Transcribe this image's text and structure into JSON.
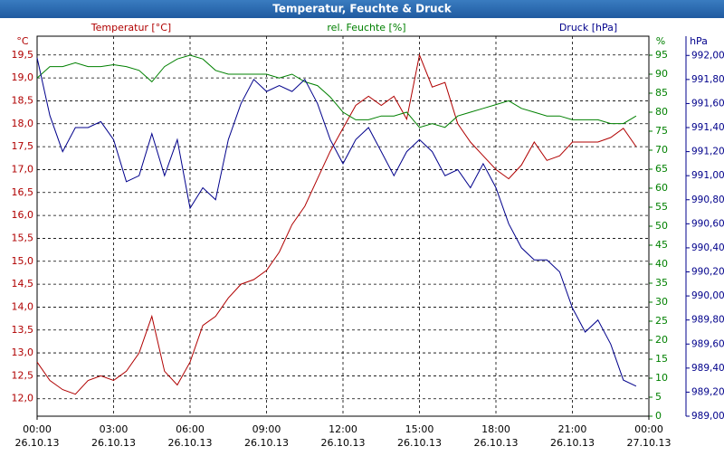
{
  "chart_data": {
    "type": "line",
    "title": "Temperatur, Feuchte & Druck",
    "y_unit": "°C",
    "y2_unit": "%",
    "y3_unit": "hPa",
    "x": [
      0,
      0.5,
      1,
      1.5,
      2,
      2.5,
      3,
      3.5,
      4,
      4.5,
      5,
      5.5,
      6,
      6.5,
      7,
      7.5,
      8,
      8.5,
      9,
      9.5,
      10,
      10.5,
      11,
      11.5,
      12,
      12.5,
      13,
      13.5,
      14,
      14.5,
      15,
      15.5,
      16,
      16.5,
      17,
      17.5,
      18,
      18.5,
      19,
      19.5,
      20,
      20.5,
      21,
      21.5,
      22,
      22.5,
      23,
      23.5
    ],
    "xlim": [
      0,
      24
    ],
    "xticks": [
      {
        "value": 0,
        "label": "00:00"
      },
      {
        "value": 3,
        "label": "03:00"
      },
      {
        "value": 6,
        "label": "06:00"
      },
      {
        "value": 9,
        "label": "09:00"
      },
      {
        "value": 12,
        "label": "12:00"
      },
      {
        "value": 15,
        "label": "15:00"
      },
      {
        "value": 18,
        "label": "18:00"
      },
      {
        "value": 21,
        "label": "21:00"
      },
      {
        "value": 24,
        "label": "00:00"
      }
    ],
    "xtick_dates": [
      "26.10.13",
      "26.10.13",
      "26.10.13",
      "26.10.13",
      "26.10.13",
      "26.10.13",
      "26.10.13",
      "26.10.13",
      "27.10.13"
    ],
    "ylim": [
      11.62,
      19.91
    ],
    "yticks": [
      {
        "value": 12,
        "label": "12,0"
      },
      {
        "value": 12.5,
        "label": "12,5"
      },
      {
        "value": 13,
        "label": "13,0"
      },
      {
        "value": 13.5,
        "label": "13,5"
      },
      {
        "value": 14,
        "label": "14,0"
      },
      {
        "value": 14.5,
        "label": "14,5"
      },
      {
        "value": 15,
        "label": "15,0"
      },
      {
        "value": 15.5,
        "label": "15,5"
      },
      {
        "value": 16,
        "label": "16,0"
      },
      {
        "value": 16.5,
        "label": "16,5"
      },
      {
        "value": 17,
        "label": "17,0"
      },
      {
        "value": 17.5,
        "label": "17,5"
      },
      {
        "value": 18,
        "label": "18,0"
      },
      {
        "value": 18.5,
        "label": "18,5"
      },
      {
        "value": 19,
        "label": "19,0"
      },
      {
        "value": 19.5,
        "label": "19,5"
      }
    ],
    "y2lim": [
      0,
      100
    ],
    "y2ticks": [
      0,
      5,
      10,
      15,
      20,
      25,
      30,
      35,
      40,
      45,
      50,
      55,
      60,
      65,
      70,
      75,
      80,
      85,
      90,
      95
    ],
    "y3lim": [
      989,
      992.16
    ],
    "y3ticks": [
      {
        "value": 989,
        "label": "989,00"
      },
      {
        "value": 989.2,
        "label": "989,20"
      },
      {
        "value": 989.4,
        "label": "989,40"
      },
      {
        "value": 989.6,
        "label": "989,60"
      },
      {
        "value": 989.8,
        "label": "989,80"
      },
      {
        "value": 990,
        "label": "990,00"
      },
      {
        "value": 990.2,
        "label": "990,20"
      },
      {
        "value": 990.4,
        "label": "990,40"
      },
      {
        "value": 990.6,
        "label": "990,60"
      },
      {
        "value": 990.8,
        "label": "990,80"
      },
      {
        "value": 991,
        "label": "991,00"
      },
      {
        "value": 991.2,
        "label": "991,20"
      },
      {
        "value": 991.4,
        "label": "991,40"
      },
      {
        "value": 991.6,
        "label": "991,60"
      },
      {
        "value": 991.8,
        "label": "991,80"
      },
      {
        "value": 992,
        "label": "992,00"
      }
    ],
    "grid": true,
    "series": [
      {
        "name": "Temperatur [°C]",
        "color": "#b00000",
        "axis": "y",
        "values": [
          12.8,
          12.4,
          12.2,
          12.1,
          12.4,
          12.5,
          12.4,
          12.6,
          13.0,
          13.8,
          12.6,
          12.3,
          12.8,
          13.6,
          13.8,
          14.2,
          14.5,
          14.6,
          14.8,
          15.2,
          15.8,
          16.2,
          16.8,
          17.4,
          17.9,
          18.4,
          18.6,
          18.4,
          18.6,
          18.1,
          19.5,
          18.8,
          18.9,
          18.0,
          17.6,
          17.3,
          17.0,
          16.8,
          17.1,
          17.6,
          17.2,
          17.3,
          17.6,
          17.6,
          17.6,
          17.7,
          17.9,
          17.5
        ]
      },
      {
        "name": "rel. Feuchte [%]",
        "color": "#008000",
        "axis": "y2",
        "values": [
          89,
          92,
          92,
          93,
          92,
          92,
          92.5,
          92,
          91,
          88,
          92,
          94,
          95,
          94,
          91,
          90,
          90,
          90,
          90,
          89,
          90,
          88,
          87,
          84,
          80,
          78,
          78,
          79,
          79,
          80,
          76,
          77,
          76,
          79,
          80,
          81,
          82,
          83,
          81,
          80,
          79,
          79,
          78,
          78,
          78,
          77,
          77,
          79
        ]
      },
      {
        "name": "Druck [hPa]",
        "color": "#00008b",
        "axis": "y3",
        "values": [
          991.98,
          991.5,
          991.2,
          991.4,
          991.4,
          991.45,
          991.3,
          990.95,
          991.0,
          991.35,
          991.0,
          991.3,
          990.73,
          990.9,
          990.8,
          991.3,
          991.6,
          991.8,
          991.7,
          991.75,
          991.7,
          991.8,
          991.6,
          991.3,
          991.1,
          991.3,
          991.4,
          991.2,
          991.0,
          991.2,
          991.3,
          991.2,
          991.0,
          991.05,
          990.9,
          991.1,
          990.9,
          990.6,
          990.4,
          990.3,
          990.3,
          990.2,
          989.9,
          989.7,
          989.8,
          989.6,
          989.3,
          989.25
        ]
      }
    ]
  }
}
